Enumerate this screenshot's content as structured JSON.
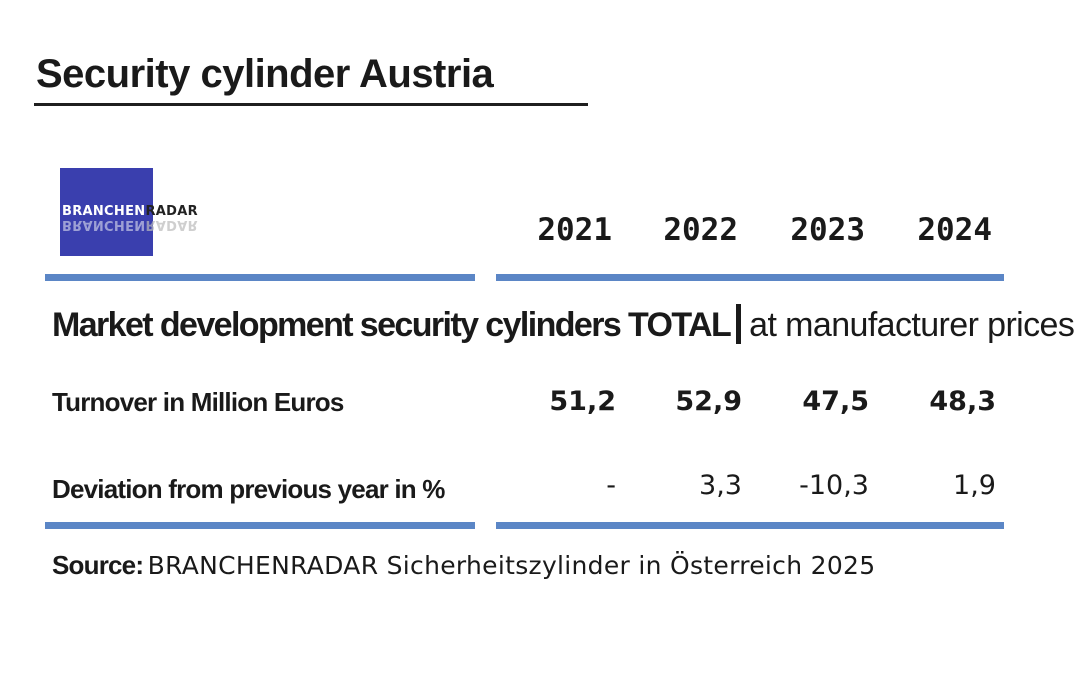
{
  "title": "Security cylinder Austria",
  "logo": {
    "part1": "BRANCHEN",
    "part2": "RADAR"
  },
  "subtitle": {
    "main": "Market development security cylinders TOTAL",
    "tail": "at manufacturer prices"
  },
  "source": {
    "label": "Source:",
    "text": "BRANCHENRADAR Sicherheitszylinder in Österreich 2025"
  },
  "colors": {
    "accent_bar": "#5b86c6",
    "logo_bg": "#3a3fae"
  },
  "chart_data": {
    "type": "table",
    "columns": [
      "2021",
      "2022",
      "2023",
      "2024"
    ],
    "rows": [
      {
        "label": "Turnover in Million Euros",
        "values": [
          "51,2",
          "52,9",
          "47,5",
          "48,3"
        ]
      },
      {
        "label": "Deviation from previous year in %",
        "values": [
          "-",
          "3,3",
          "-10,3",
          "1,9"
        ]
      }
    ]
  }
}
